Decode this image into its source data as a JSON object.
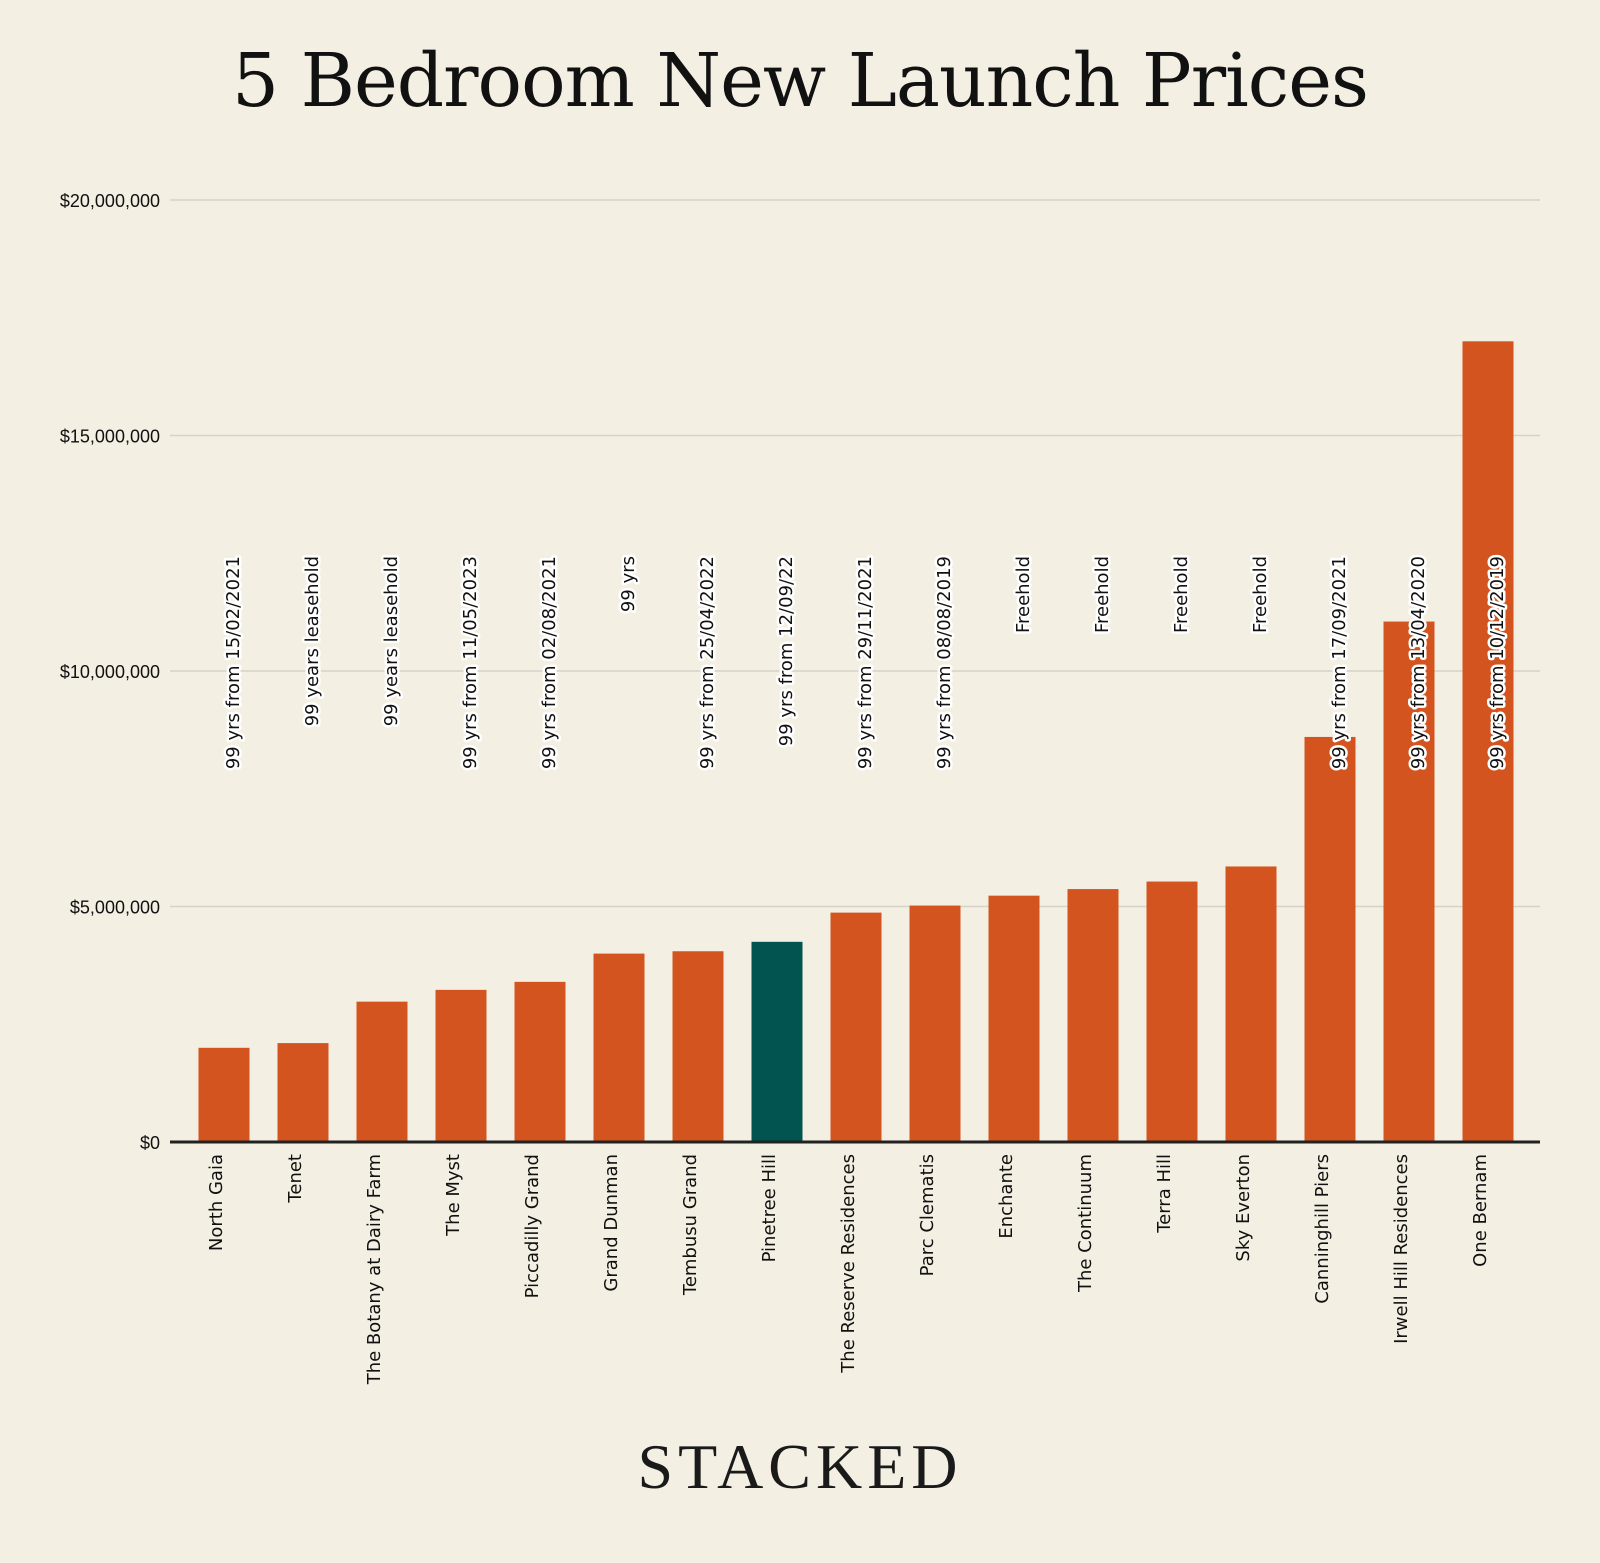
{
  "page": {
    "brand": "STACKED"
  },
  "colors": {
    "background": "#f4efe3",
    "bar": "#d4541f",
    "highlight": "#01544f",
    "grid": "#d6d2c8",
    "axis": "#222222"
  },
  "chart_data": {
    "type": "bar",
    "title": "5 Bedroom New Launch Prices",
    "xlabel": "",
    "ylabel": "",
    "ylim": [
      0,
      20000000
    ],
    "y_ticks": [
      0,
      5000000,
      10000000,
      15000000,
      20000000
    ],
    "y_tick_labels": [
      "$0",
      "$5,000,000",
      "$10,000,000",
      "$15,000,000",
      "$20,000,000"
    ],
    "grid": true,
    "highlight_category": "Pinetree Hill",
    "categories": [
      "North Gaia",
      "Tenet",
      "The Botany at Dairy Farm",
      "The Myst",
      "Piccadilly Grand",
      "Grand Dunman",
      "Tembusu Grand",
      "Pinetree Hill",
      "The Reserve Residences",
      "Parc Clematis",
      "Enchante",
      "The Continuum",
      "Terra Hill",
      "Sky Everton",
      "Canninghill Piers",
      "Irwell Hill Residences",
      "One Bernam"
    ],
    "values": [
      2000000,
      2100000,
      2980000,
      3230000,
      3400000,
      4000000,
      4050000,
      4250000,
      4870000,
      5020000,
      5230000,
      5370000,
      5530000,
      5850000,
      8600000,
      11050000,
      17000000
    ],
    "tenure_labels": [
      "99 yrs from 15/02/2021",
      "99 years leasehold",
      "99 years leasehold",
      "99 yrs from 11/05/2023",
      "99 yrs from 02/08/2021",
      "99 yrs",
      "99 yrs from 25/04/2022",
      "99 yrs from 12/09/22",
      "99 yrs from 29/11/2021",
      "99 yrs from 08/08/2019",
      "Freehold",
      "Freehold",
      "Freehold",
      "Freehold",
      "99 yrs from 17/09/2021",
      "99 yrs from 13/04/2020",
      "99 yrs from 10/12/2019"
    ]
  }
}
